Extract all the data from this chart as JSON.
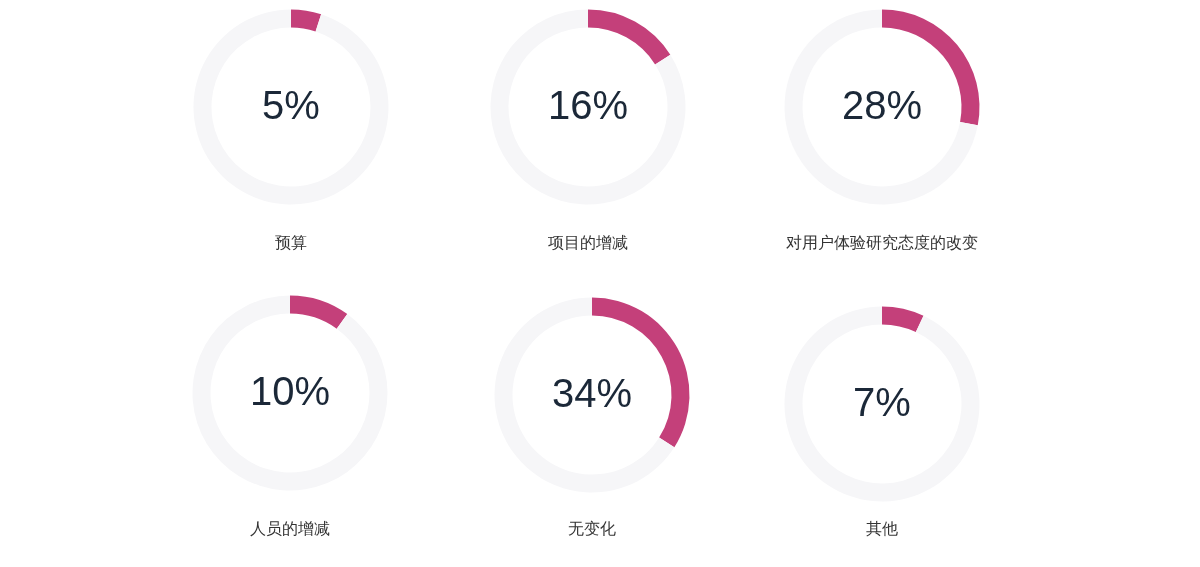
{
  "chart_data": [
    {
      "type": "donut",
      "title": "预算",
      "categories": [
        null,
        null
      ],
      "values": [
        5,
        95
      ],
      "colors": [
        "#c4407a",
        "#f6f6f8"
      ],
      "value_labels": [
        "5%",
        null
      ]
    },
    {
      "type": "donut",
      "title": "项目的增减",
      "categories": [
        null,
        null
      ],
      "values": [
        16,
        84
      ],
      "colors": [
        "#c4407a",
        "#f6f6f8"
      ],
      "value_labels": [
        "16%",
        null
      ]
    },
    {
      "type": "donut",
      "title": "对用户体验研究态度的改变",
      "categories": [
        null,
        null
      ],
      "values": [
        28,
        72
      ],
      "colors": [
        "#c4407a",
        "#f6f6f8"
      ],
      "value_labels": [
        "28%",
        null
      ]
    },
    {
      "type": "donut",
      "title": "人员的增减",
      "categories": [
        null,
        null
      ],
      "values": [
        10,
        90
      ],
      "colors": [
        "#c4407a",
        "#f6f6f8"
      ],
      "value_labels": [
        "10%",
        null
      ]
    },
    {
      "type": "donut",
      "title": "无变化",
      "categories": [
        null,
        null
      ],
      "values": [
        34,
        66
      ],
      "colors": [
        "#c4407a",
        "#f6f6f8"
      ],
      "value_labels": [
        "34%",
        null
      ]
    },
    {
      "type": "donut",
      "title": "其他",
      "categories": [
        null,
        null
      ],
      "values": [
        7,
        93
      ],
      "colors": [
        "#c4407a",
        "#f6f6f8"
      ],
      "value_labels": [
        "7%",
        null
      ]
    }
  ]
}
